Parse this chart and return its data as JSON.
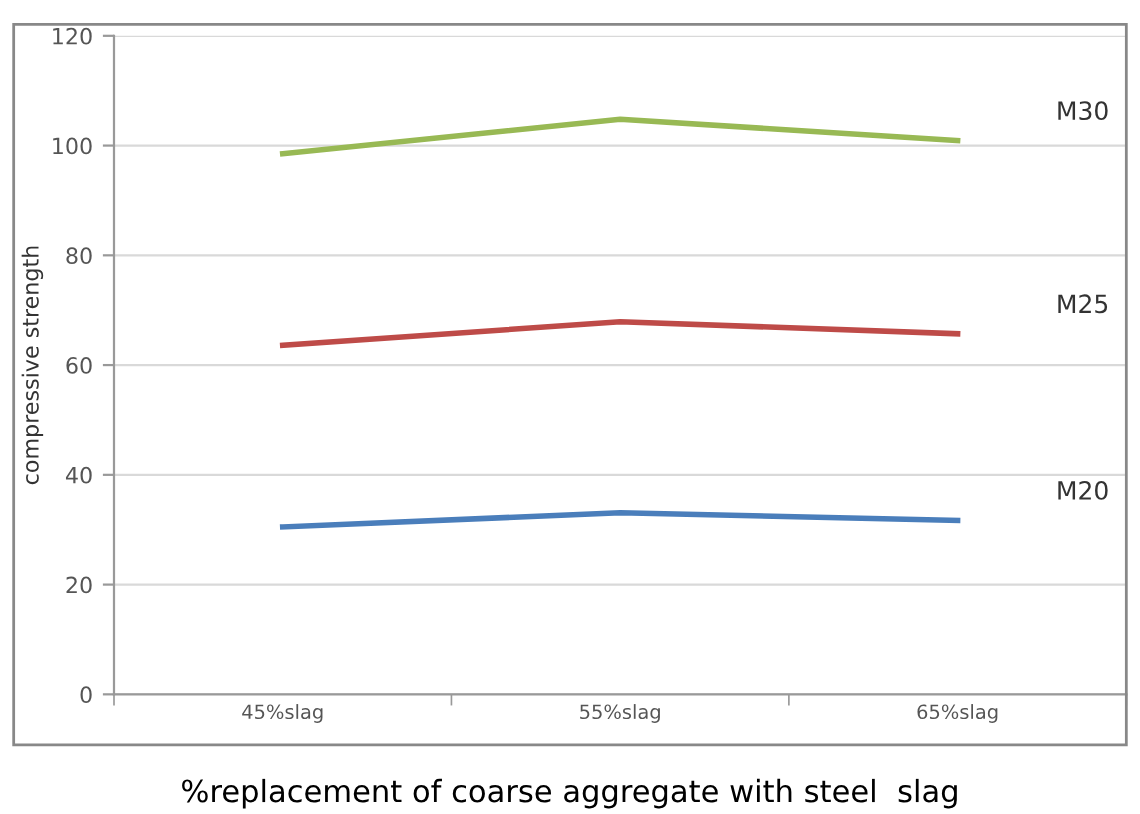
{
  "chart_data": {
    "type": "line",
    "categories": [
      "45%slag",
      "55%slag",
      "65%slag"
    ],
    "series": [
      {
        "name": "M20",
        "color": "#4a7ebb",
        "values": [
          30.5,
          33.1,
          31.7
        ]
      },
      {
        "name": "M25",
        "color": "#be4b48",
        "values": [
          63.6,
          67.9,
          65.7
        ]
      },
      {
        "name": "M30",
        "color": "#98b954",
        "values": [
          98.5,
          104.8,
          100.9
        ]
      }
    ],
    "xlabel": "%replacement of coarse aggregate with steel  slag",
    "ylabel": "compressive strength",
    "ylim": [
      0,
      120
    ],
    "yticks": [
      0,
      20,
      40,
      60,
      80,
      100,
      120
    ],
    "grid": "y",
    "marker": "none",
    "line_style": "solid",
    "legend": false
  }
}
